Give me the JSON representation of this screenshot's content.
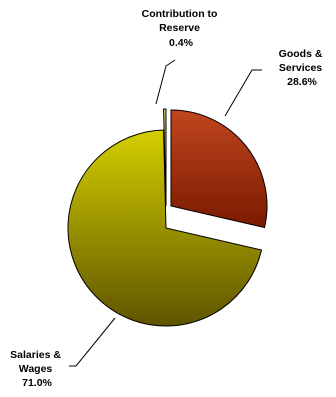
{
  "chart_data": {
    "type": "pie",
    "title": "",
    "legend": "none",
    "exploded": true,
    "start_angle_deg_clockwise_from_top": 0,
    "slices": [
      {
        "key": "goods",
        "label_lines": [
          "Goods &",
          "Services"
        ],
        "value": 28.6,
        "value_label": "28.6%",
        "color_light": "#c0461e",
        "color_dark": "#7a1a00"
      },
      {
        "key": "salaries",
        "label_lines": [
          "Salaries &",
          "Wages"
        ],
        "value": 71.0,
        "value_label": "71.0%",
        "color_light": "#d4cf00",
        "color_dark": "#5e5400"
      },
      {
        "key": "reserve",
        "label_lines": [
          "Contribution to",
          "Reserve"
        ],
        "value": 0.4,
        "value_label": "0.4%",
        "color_light": "#d8d870",
        "color_dark": "#6a6a20"
      }
    ]
  }
}
